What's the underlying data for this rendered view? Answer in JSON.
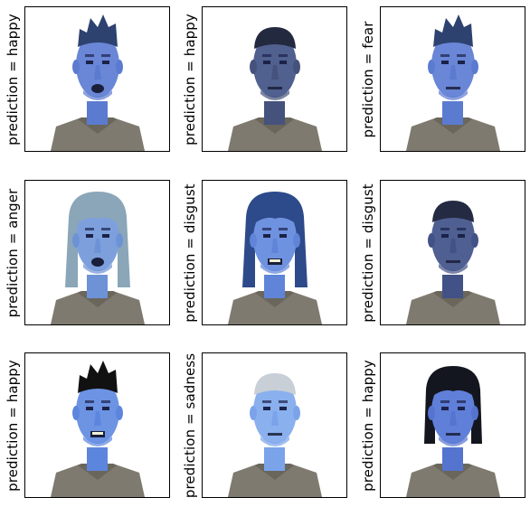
{
  "panels": [
    {
      "prediction": "prediction = happy",
      "face": {
        "skin": "#6a86d6",
        "hair": "#2e4270",
        "hair_style": "spiky",
        "mouth": "open",
        "tint": "#5b7bd0"
      }
    },
    {
      "prediction": "prediction = happy",
      "face": {
        "skin": "#50608f",
        "hair": "#23293f",
        "hair_style": "short",
        "mouth": "closed",
        "tint": "#45527c"
      }
    },
    {
      "prediction": "prediction = fear",
      "face": {
        "skin": "#6a86d6",
        "hair": "#2e4270",
        "hair_style": "spiky",
        "mouth": "closed",
        "tint": "#5b7bd0"
      }
    },
    {
      "prediction": "prediction = anger",
      "face": {
        "skin": "#7da0dd",
        "hair": "#8aa6b8",
        "hair_style": "long",
        "mouth": "open",
        "tint": "#6e92d6"
      }
    },
    {
      "prediction": "prediction = disgust",
      "face": {
        "skin": "#6f92e0",
        "hair": "#2d4a8a",
        "hair_style": "long",
        "mouth": "teeth",
        "tint": "#5f84d8"
      }
    },
    {
      "prediction": "prediction = disgust",
      "face": {
        "skin": "#4f5f92",
        "hair": "#242a42",
        "hair_style": "short",
        "mouth": "closed",
        "tint": "#435286"
      }
    },
    {
      "prediction": "prediction = happy",
      "face": {
        "skin": "#6d93e3",
        "hair": "#111111",
        "hair_style": "spiky",
        "mouth": "teeth",
        "tint": "#5c86de"
      }
    },
    {
      "prediction": "prediction = sadness",
      "face": {
        "skin": "#8ab0ee",
        "hair": "#c9cfd6",
        "hair_style": "short",
        "mouth": "closed",
        "tint": "#7aa3ea"
      }
    },
    {
      "prediction": "prediction = happy",
      "face": {
        "skin": "#5f7fd8",
        "hair": "#14161f",
        "hair_style": "bob",
        "mouth": "closed",
        "tint": "#5574cf"
      }
    }
  ],
  "colors": {
    "shirt": "#7f7a6f",
    "shirt_dark": "#6a665c",
    "eye": "#1b2248",
    "teeth": "#f1f2d6",
    "mouth_dark": "#1a1f3a"
  }
}
